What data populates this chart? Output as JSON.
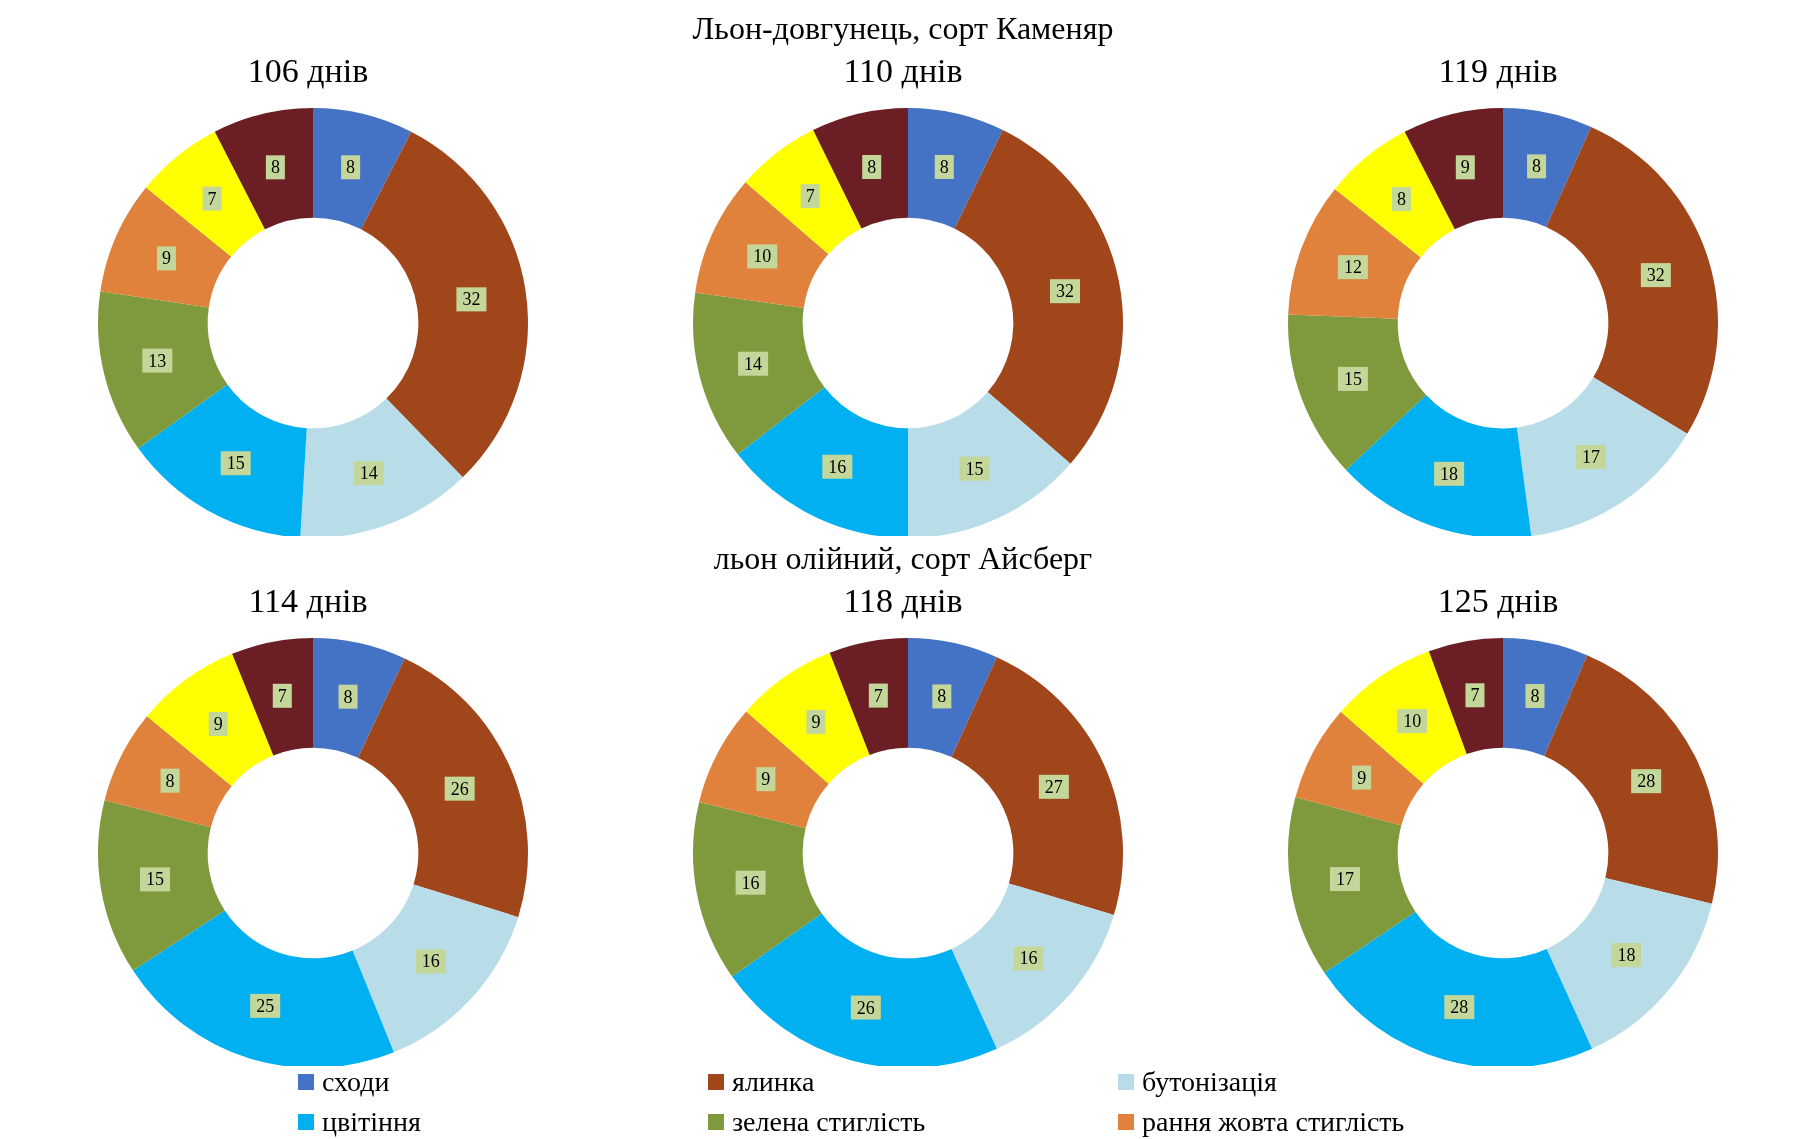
{
  "chart_data": [
    {
      "type": "donut",
      "title": "106 днів",
      "categories": [
        "сходи",
        "ялинка",
        "бутонізація",
        "цвітіння",
        "зелена стиглість",
        "рання жовта стиглість",
        null,
        null
      ],
      "values": [
        8,
        32,
        14,
        15,
        13,
        9,
        7,
        8
      ],
      "colors": [
        "#4472c4",
        "#a0461a",
        "#b8dde8",
        "#00b0f0",
        "#7f9a3c",
        "#e0823c",
        "#ffff00",
        "#6b1f24"
      ],
      "data_labels": true,
      "legend": "bottom"
    },
    {
      "type": "donut",
      "title": "110 днів",
      "annotations": [
        "Льон-довгунець, сорт Каменяр"
      ],
      "categories": [
        null,
        null,
        null,
        null,
        null,
        null,
        null,
        null
      ],
      "values": [
        8,
        32,
        15,
        16,
        14,
        10,
        7,
        8
      ],
      "colors": [
        "#4472c4",
        "#a0461a",
        "#b8dde8",
        "#00b0f0",
        "#7f9a3c",
        "#e0823c",
        "#ffff00",
        "#6b1f24"
      ],
      "data_labels": true
    },
    {
      "type": "donut",
      "title": "119 днів",
      "categories": [
        null,
        null,
        null,
        null,
        null,
        null,
        null,
        null
      ],
      "values": [
        8,
        32,
        17,
        18,
        15,
        12,
        8,
        9
      ],
      "colors": [
        "#4472c4",
        "#a0461a",
        "#b8dde8",
        "#00b0f0",
        "#7f9a3c",
        "#e0823c",
        "#ffff00",
        "#6b1f24"
      ],
      "data_labels": true
    },
    {
      "type": "donut",
      "title": "114 днів",
      "categories": [
        null,
        null,
        null,
        null,
        null,
        null,
        null,
        null
      ],
      "values": [
        8,
        26,
        16,
        25,
        15,
        8,
        9,
        7
      ],
      "colors": [
        "#4472c4",
        "#a0461a",
        "#b8dde8",
        "#00b0f0",
        "#7f9a3c",
        "#e0823c",
        "#ffff00",
        "#6b1f24"
      ],
      "data_labels": true
    },
    {
      "type": "donut",
      "title": "118 днів",
      "annotations": [
        "льон олійний, сорт Айсберг"
      ],
      "categories": [
        null,
        null,
        null,
        null,
        null,
        null,
        null,
        null
      ],
      "values": [
        8,
        27,
        16,
        26,
        16,
        9,
        9,
        7
      ],
      "colors": [
        "#4472c4",
        "#a0461a",
        "#b8dde8",
        "#00b0f0",
        "#7f9a3c",
        "#e0823c",
        "#ffff00",
        "#6b1f24"
      ],
      "data_labels": true
    },
    {
      "type": "donut",
      "title": "125 днів",
      "categories": [
        null,
        null,
        null,
        null,
        null,
        null,
        null,
        null
      ],
      "values": [
        8,
        28,
        18,
        28,
        17,
        9,
        10,
        7
      ],
      "colors": [
        "#4472c4",
        "#a0461a",
        "#b8dde8",
        "#00b0f0",
        "#7f9a3c",
        "#e0823c",
        "#ffff00",
        "#6b1f24"
      ],
      "data_labels": true
    }
  ]
}
